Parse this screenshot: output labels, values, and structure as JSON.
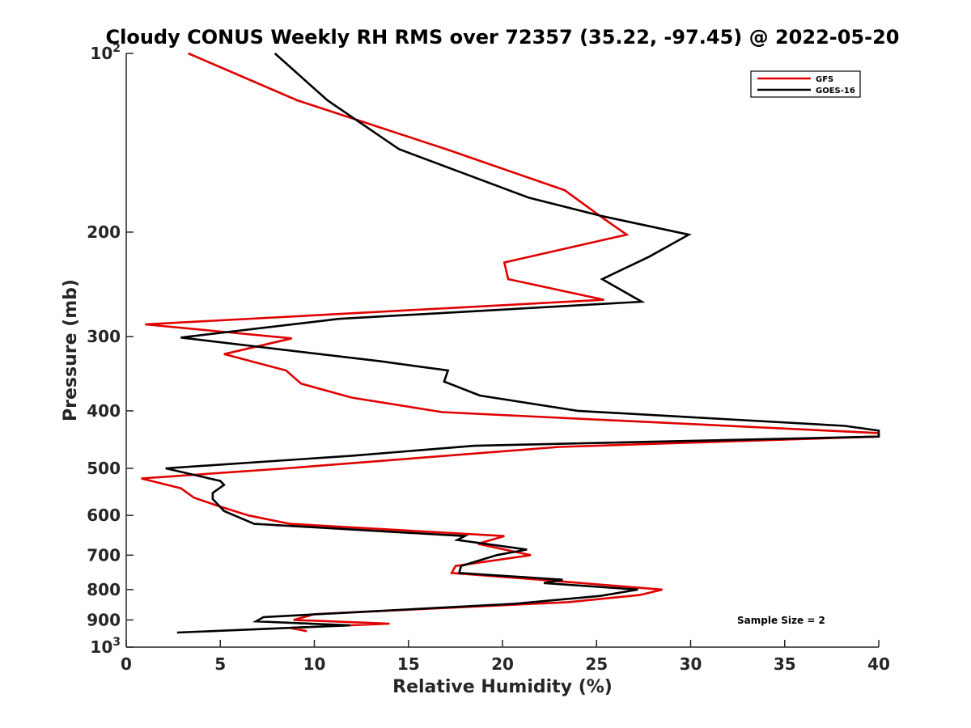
{
  "chart_data": {
    "type": "line",
    "title": "Cloudy CONUS Weekly RH RMS over 72357 (35.22, -97.45) @ 2022-05-20",
    "xlabel": "Relative Humidity (%)",
    "ylabel": "Pressure (mb)",
    "xlim": [
      0,
      40
    ],
    "ylim": [
      100,
      1000
    ],
    "y_scale": "log",
    "y_reversed": true,
    "grid": false,
    "legend_position": "top-right",
    "x_ticks": [
      "0",
      "5",
      "10",
      "15",
      "20",
      "25",
      "30",
      "35",
      "40"
    ],
    "y_ticks": [
      {
        "value": 100,
        "base": "10",
        "exp": "2"
      },
      {
        "value": 200,
        "label": "200"
      },
      {
        "value": 300,
        "label": "300"
      },
      {
        "value": 400,
        "label": "400"
      },
      {
        "value": 500,
        "label": "500"
      },
      {
        "value": 600,
        "label": "600"
      },
      {
        "value": 700,
        "label": "700"
      },
      {
        "value": 800,
        "label": "800"
      },
      {
        "value": 900,
        "label": "900"
      },
      {
        "value": 1000,
        "base": "10",
        "exp": "3"
      }
    ],
    "annotation": "Sample Size = 2",
    "series": [
      {
        "name": "GFS",
        "color": "#e00000",
        "points": [
          [
            3.3,
            100
          ],
          [
            9.1,
            120
          ],
          [
            17.0,
            145
          ],
          [
            23.3,
            170
          ],
          [
            25.4,
            190
          ],
          [
            26.6,
            202
          ],
          [
            20.1,
            225
          ],
          [
            20.3,
            240
          ],
          [
            25.4,
            260
          ],
          [
            1.0,
            286
          ],
          [
            8.8,
            302
          ],
          [
            5.2,
            321
          ],
          [
            8.5,
            342
          ],
          [
            9.3,
            360
          ],
          [
            12.0,
            380
          ],
          [
            16.8,
            402
          ],
          [
            40,
            436
          ],
          [
            40,
            442
          ],
          [
            23.0,
            460
          ],
          [
            8.5,
            500
          ],
          [
            0.8,
            520
          ],
          [
            2.9,
            540
          ],
          [
            3.6,
            560
          ],
          [
            5.0,
            580
          ],
          [
            6.5,
            600
          ],
          [
            8.7,
            620
          ],
          [
            20.1,
            650
          ],
          [
            18.7,
            670
          ],
          [
            21.5,
            700
          ],
          [
            17.5,
            730
          ],
          [
            17.3,
            750
          ],
          [
            22.0,
            770
          ],
          [
            28.5,
            800
          ],
          [
            27.3,
            817
          ],
          [
            23.5,
            840
          ],
          [
            10.0,
            880
          ],
          [
            8.9,
            900
          ],
          [
            14.0,
            913
          ],
          [
            8.7,
            928
          ],
          [
            9.6,
            940
          ]
        ]
      },
      {
        "name": "GOES-16",
        "color": "#000000",
        "points": [
          [
            7.9,
            100
          ],
          [
            10.7,
            120
          ],
          [
            14.5,
            145
          ],
          [
            21.4,
            175
          ],
          [
            25.3,
            188
          ],
          [
            29.9,
            202
          ],
          [
            27.8,
            220
          ],
          [
            25.3,
            240
          ],
          [
            27.4,
            262
          ],
          [
            11.3,
            280
          ],
          [
            2.9,
            301
          ],
          [
            13.5,
            330
          ],
          [
            17.1,
            342
          ],
          [
            16.9,
            357
          ],
          [
            18.8,
            377
          ],
          [
            24.0,
            400
          ],
          [
            38.2,
            424
          ],
          [
            40,
            432
          ],
          [
            40,
            442
          ],
          [
            18.5,
            458
          ],
          [
            12.0,
            476
          ],
          [
            2.1,
            500
          ],
          [
            5.0,
            525
          ],
          [
            5.2,
            533
          ],
          [
            4.6,
            550
          ],
          [
            4.6,
            563
          ],
          [
            5.2,
            590
          ],
          [
            6.8,
            620
          ],
          [
            18.0,
            650
          ],
          [
            17.6,
            660
          ],
          [
            21.3,
            685
          ],
          [
            19.7,
            700
          ],
          [
            17.8,
            730
          ],
          [
            17.7,
            750
          ],
          [
            23.2,
            770
          ],
          [
            22.2,
            780
          ],
          [
            27.2,
            800
          ],
          [
            25.2,
            820
          ],
          [
            20.7,
            845
          ],
          [
            7.3,
            890
          ],
          [
            6.9,
            905
          ],
          [
            11.9,
            919
          ],
          [
            2.7,
            945
          ]
        ]
      }
    ]
  }
}
